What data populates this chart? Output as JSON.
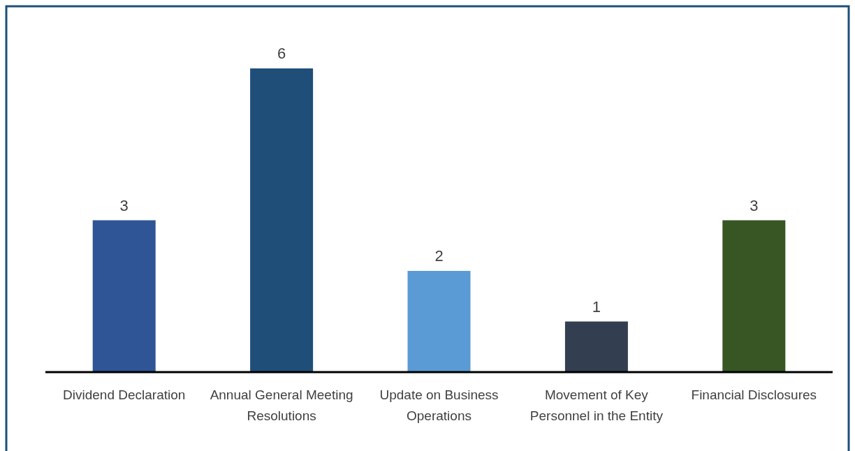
{
  "chart_data": {
    "type": "bar",
    "categories": [
      "Dividend Declaration",
      "Annual General Meeting Resolutions",
      "Update on Business Operations",
      "Movement of Key Personnel in the Entity",
      "Financial Disclosures"
    ],
    "values": [
      3,
      6,
      2,
      1,
      3
    ],
    "colors": [
      "#2f5597",
      "#1f4e79",
      "#5b9bd5",
      "#333f50",
      "#375623"
    ],
    "data_labels": true
  }
}
